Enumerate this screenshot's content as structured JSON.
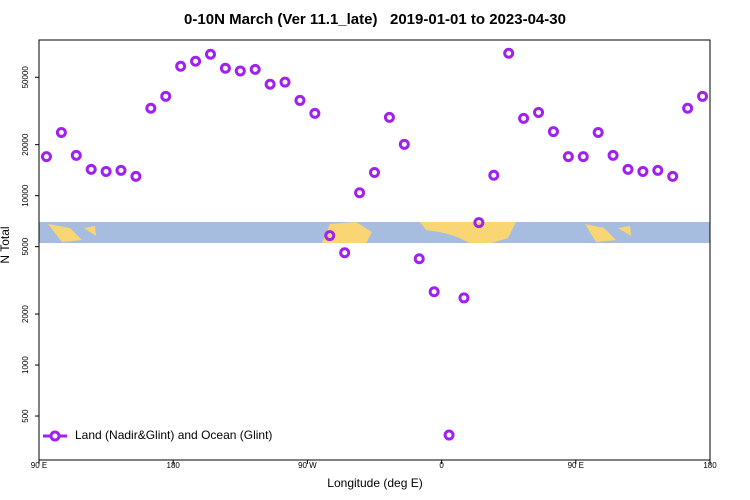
{
  "chart_data": {
    "type": "scatter",
    "title": "0-10N March (Ver 11.1_late)   2019-01-01 to 2023-04-30",
    "x_label": "Longitude (deg E)",
    "y_label": "N Total",
    "xlim": [
      90,
      540
    ],
    "xticks": [
      {
        "value": 90,
        "label": "90 E"
      },
      180,
      {
        "value": 270,
        "label": "90 W"
      },
      {
        "value": 360,
        "label": "0"
      },
      {
        "value": 450,
        "label": "90 E"
      },
      {
        "value": 540,
        "label": "180"
      }
    ],
    "ylim": [
      275,
      83000
    ],
    "yticks": [
      500,
      1000,
      2000,
      5000,
      10000,
      20000,
      50000
    ],
    "ylog": true,
    "legend": "lower left",
    "series": [
      {
        "name": "Land (Nadir&Glint) and Ocean (Glint)",
        "color": "#a020f0",
        "x": [
          95,
          105,
          115,
          125,
          135,
          145,
          155,
          165,
          175,
          185,
          195,
          205,
          215,
          225,
          235,
          245,
          255,
          265,
          275,
          285,
          295,
          305,
          315,
          325,
          335,
          345,
          355,
          365,
          375,
          385,
          395,
          405,
          415,
          425,
          435,
          445,
          455,
          465,
          475,
          485,
          495,
          505,
          515,
          525,
          535
        ],
        "values": [
          17000,
          23600,
          17300,
          14300,
          13900,
          14100,
          13000,
          32800,
          38600,
          58100,
          62200,
          68400,
          56500,
          54500,
          55700,
          45500,
          46800,
          36500,
          30600,
          5810,
          4600,
          10400,
          13700,
          29000,
          20100,
          4240,
          2710,
          386,
          2490,
          6930,
          13200,
          69300,
          28600,
          31000,
          23900,
          17000,
          17000,
          23600,
          17300,
          14300,
          13900,
          14100,
          13000,
          32800,
          38600
        ]
      }
    ]
  }
}
